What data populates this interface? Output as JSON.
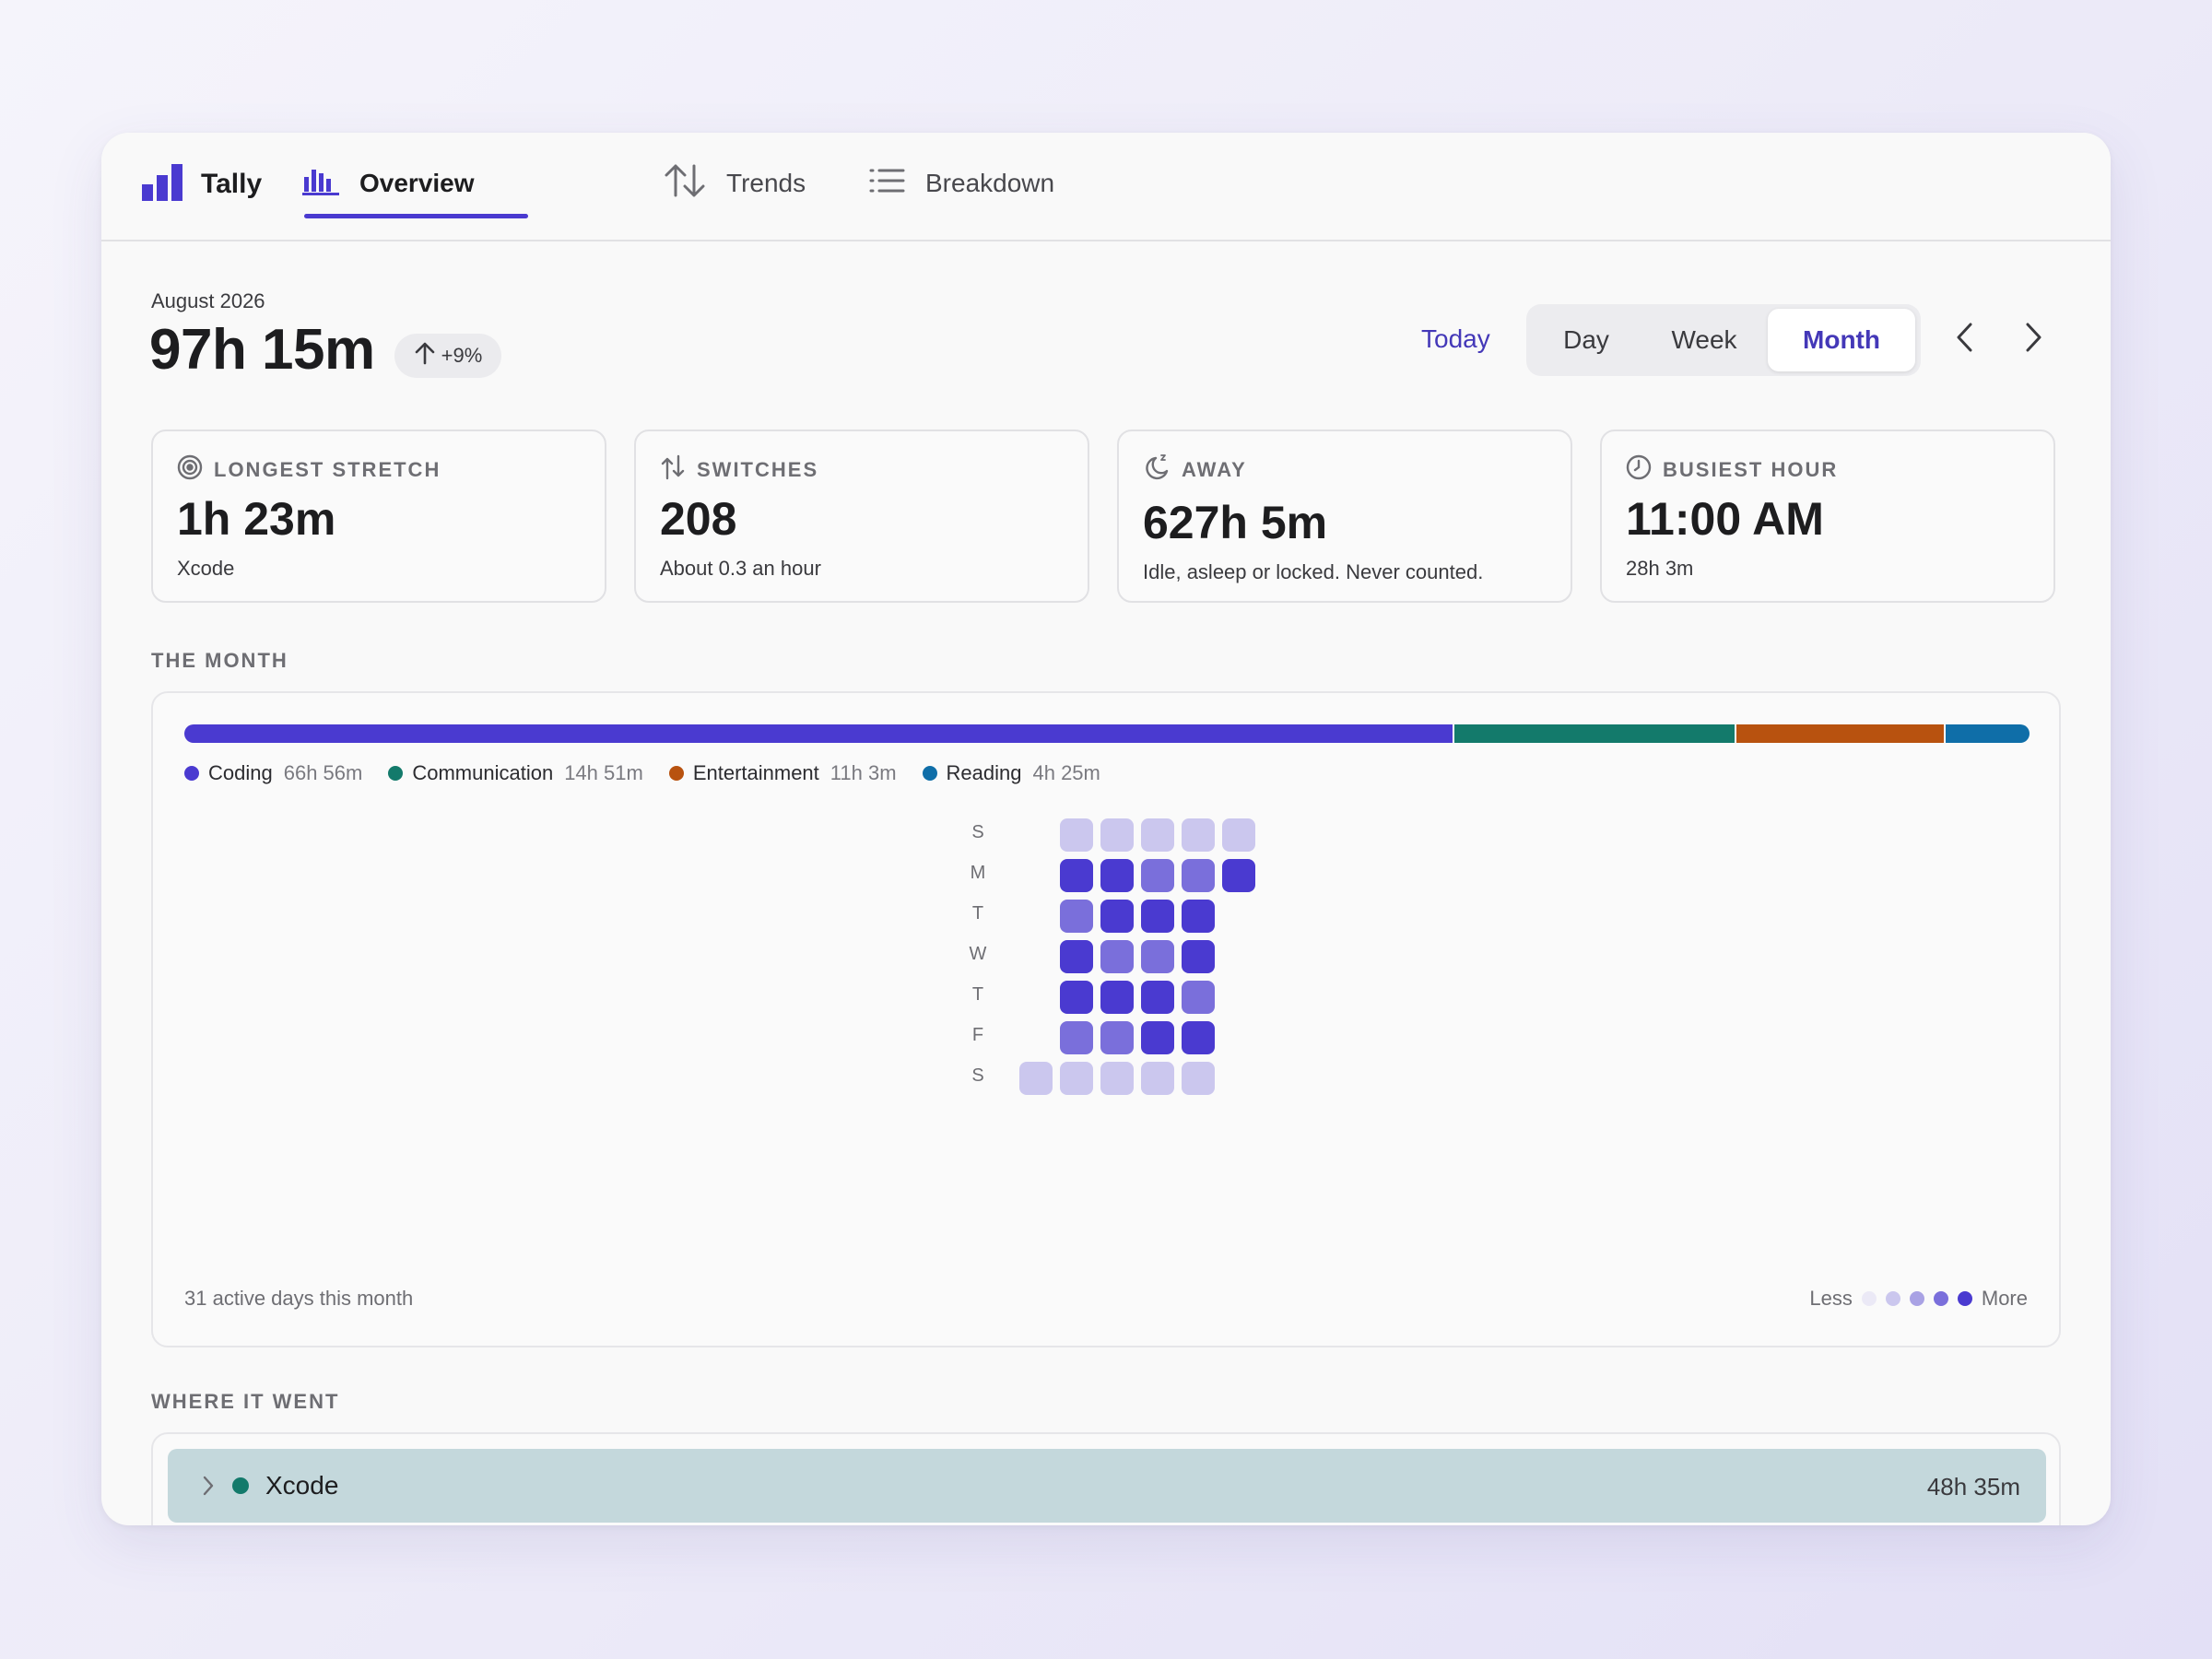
{
  "app": {
    "name": "Tally",
    "icon": "bar-chart-logo-icon"
  },
  "nav": {
    "tabs": [
      {
        "label": "Overview",
        "icon": "bar-chart-icon",
        "active": true
      },
      {
        "label": "Trends",
        "icon": "up-down-arrows-icon",
        "active": false
      },
      {
        "label": "Breakdown",
        "icon": "list-icon",
        "active": false
      }
    ]
  },
  "header": {
    "period": "August 2026",
    "total": "97h 15m",
    "delta": "+9%",
    "today_label": "Today",
    "range_options": [
      "Day",
      "Week",
      "Month"
    ],
    "selected_range": "Month"
  },
  "stats": [
    {
      "title": "LONGEST STRETCH",
      "icon": "target-icon",
      "value": "1h 23m",
      "sub": "Xcode"
    },
    {
      "title": "SWITCHES",
      "icon": "switch-arrows-icon",
      "value": "208",
      "sub": "About 0.3 an hour"
    },
    {
      "title": "AWAY",
      "icon": "moon-icon",
      "value": "627h 5m",
      "sub": "Idle, asleep or locked. Never counted."
    },
    {
      "title": "BUSIEST HOUR",
      "icon": "clock-icon",
      "value": "11:00 AM",
      "sub": "28h 3m"
    }
  ],
  "month": {
    "section_title": "THE MONTH",
    "categories": [
      {
        "name": "Coding",
        "time": "66h 56m",
        "minutes": 4016,
        "color": "#4a3ad0"
      },
      {
        "name": "Communication",
        "time": "14h 51m",
        "minutes": 891,
        "color": "#137a6b"
      },
      {
        "name": "Entertainment",
        "time": "11h 3m",
        "minutes": 663,
        "color": "#b8520f"
      },
      {
        "name": "Reading",
        "time": "4h 25m",
        "minutes": 265,
        "color": "#0f6ea8"
      }
    ],
    "weekdays": [
      "S",
      "M",
      "T",
      "W",
      "T",
      "F",
      "S"
    ],
    "heatmap": [
      [
        null,
        1,
        1,
        1,
        1,
        1
      ],
      [
        null,
        4,
        4,
        3,
        3,
        4
      ],
      [
        null,
        3,
        4,
        4,
        4,
        null
      ],
      [
        null,
        4,
        3,
        3,
        4,
        null
      ],
      [
        null,
        4,
        4,
        4,
        3,
        null
      ],
      [
        null,
        3,
        3,
        4,
        4,
        null
      ],
      [
        1,
        1,
        1,
        1,
        1,
        null
      ]
    ],
    "level_colors": [
      "#ebe9f6",
      "#cbc7ee",
      "#a9a2e4",
      "#7a6fdb",
      "#4a3ad0"
    ],
    "footer_note": "31 active days this month",
    "scale_less": "Less",
    "scale_more": "More"
  },
  "where": {
    "section_title": "WHERE IT WENT",
    "apps": [
      {
        "name": "Xcode",
        "time": "48h 35m",
        "color": "#137a6b",
        "icon": "chevron-right-icon"
      }
    ]
  }
}
